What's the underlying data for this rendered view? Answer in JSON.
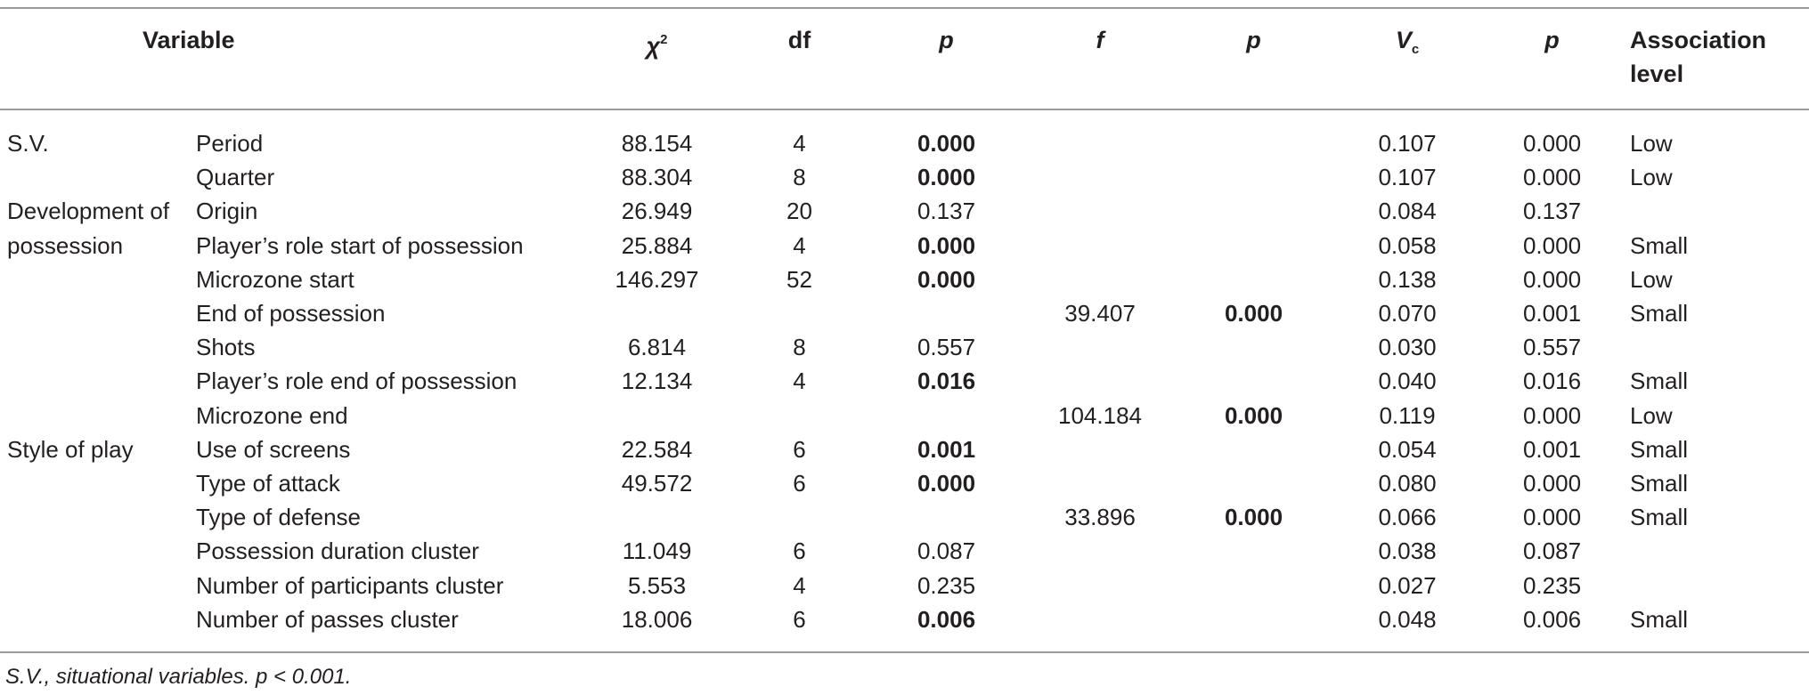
{
  "header": {
    "variable": "Variable",
    "chi2_base": "χ",
    "chi2_sup": "2",
    "df": "df",
    "p1": "p",
    "f": "f",
    "p2": "p",
    "vc_base": "V",
    "vc_sub": "c",
    "p3": "p",
    "association_line1": "Association",
    "association_line2": "level"
  },
  "rows": [
    {
      "group": "S.V.",
      "variable": "Period",
      "chi2": "88.154",
      "df": "4",
      "p1": "0.000",
      "p1_bold": true,
      "f": "",
      "p2": "",
      "p2_bold": false,
      "vc": "0.107",
      "p3": "0.000",
      "level": "Low"
    },
    {
      "group": "",
      "variable": "Quarter",
      "chi2": "88.304",
      "df": "8",
      "p1": "0.000",
      "p1_bold": true,
      "f": "",
      "p2": "",
      "p2_bold": false,
      "vc": "0.107",
      "p3": "0.000",
      "level": "Low"
    },
    {
      "group": "Development of",
      "variable": "Origin",
      "chi2": "26.949",
      "df": "20",
      "p1": "0.137",
      "p1_bold": false,
      "f": "",
      "p2": "",
      "p2_bold": false,
      "vc": "0.084",
      "p3": "0.137",
      "level": ""
    },
    {
      "group": "possession",
      "variable": "Player’s role start of possession",
      "chi2": "25.884",
      "df": "4",
      "p1": "0.000",
      "p1_bold": true,
      "f": "",
      "p2": "",
      "p2_bold": false,
      "vc": "0.058",
      "p3": "0.000",
      "level": "Small"
    },
    {
      "group": "",
      "variable": "Microzone start",
      "chi2": "146.297",
      "df": "52",
      "p1": "0.000",
      "p1_bold": true,
      "f": "",
      "p2": "",
      "p2_bold": false,
      "vc": "0.138",
      "p3": "0.000",
      "level": "Low"
    },
    {
      "group": "",
      "variable": "End of possession",
      "chi2": "",
      "df": "",
      "p1": "",
      "p1_bold": false,
      "f": "39.407",
      "p2": "0.000",
      "p2_bold": true,
      "vc": "0.070",
      "p3": "0.001",
      "level": "Small"
    },
    {
      "group": "",
      "variable": "Shots",
      "chi2": "6.814",
      "df": "8",
      "p1": "0.557",
      "p1_bold": false,
      "f": "",
      "p2": "",
      "p2_bold": false,
      "vc": "0.030",
      "p3": "0.557",
      "level": ""
    },
    {
      "group": "",
      "variable": "Player’s role end of possession",
      "chi2": "12.134",
      "df": "4",
      "p1": "0.016",
      "p1_bold": true,
      "f": "",
      "p2": "",
      "p2_bold": false,
      "vc": "0.040",
      "p3": "0.016",
      "level": "Small"
    },
    {
      "group": "",
      "variable": "Microzone end",
      "chi2": "",
      "df": "",
      "p1": "",
      "p1_bold": false,
      "f": "104.184",
      "p2": "0.000",
      "p2_bold": true,
      "vc": "0.119",
      "p3": "0.000",
      "level": "Low"
    },
    {
      "group": "Style of play",
      "variable": "Use of screens",
      "chi2": "22.584",
      "df": "6",
      "p1": "0.001",
      "p1_bold": true,
      "f": "",
      "p2": "",
      "p2_bold": false,
      "vc": "0.054",
      "p3": "0.001",
      "level": "Small"
    },
    {
      "group": "",
      "variable": "Type of attack",
      "chi2": "49.572",
      "df": "6",
      "p1": "0.000",
      "p1_bold": true,
      "f": "",
      "p2": "",
      "p2_bold": false,
      "vc": "0.080",
      "p3": "0.000",
      "level": "Small"
    },
    {
      "group": "",
      "variable": "Type of defense",
      "chi2": "",
      "df": "",
      "p1": "",
      "p1_bold": false,
      "f": "33.896",
      "p2": "0.000",
      "p2_bold": true,
      "vc": "0.066",
      "p3": "0.000",
      "level": "Small"
    },
    {
      "group": "",
      "variable": "Possession duration cluster",
      "chi2": "11.049",
      "df": "6",
      "p1": "0.087",
      "p1_bold": false,
      "f": "",
      "p2": "",
      "p2_bold": false,
      "vc": "0.038",
      "p3": "0.087",
      "level": ""
    },
    {
      "group": "",
      "variable": "Number of participants cluster",
      "chi2": "5.553",
      "df": "4",
      "p1": "0.235",
      "p1_bold": false,
      "f": "",
      "p2": "",
      "p2_bold": false,
      "vc": "0.027",
      "p3": "0.235",
      "level": ""
    },
    {
      "group": "",
      "variable": "Number of passes cluster",
      "chi2": "18.006",
      "df": "6",
      "p1": "0.006",
      "p1_bold": true,
      "f": "",
      "p2": "",
      "p2_bold": false,
      "vc": "0.048",
      "p3": "0.006",
      "level": "Small"
    }
  ],
  "footnote": "S.V., situational variables. p < 0.001."
}
